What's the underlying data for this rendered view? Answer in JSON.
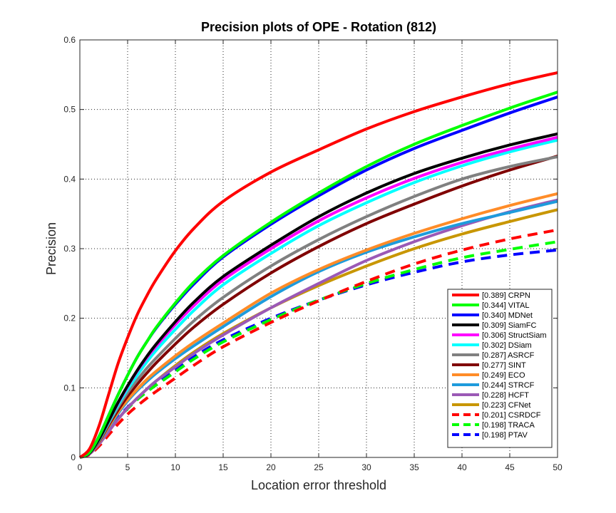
{
  "chart_data": {
    "type": "line",
    "title": "Precision plots of OPE - Rotation (812)",
    "xlabel": "Location error threshold",
    "ylabel": "Precision",
    "xlim": [
      0,
      50
    ],
    "ylim": [
      0,
      0.6
    ],
    "xticks": [
      0,
      5,
      10,
      15,
      20,
      25,
      30,
      35,
      40,
      45,
      50
    ],
    "yticks": [
      0,
      0.1,
      0.2,
      0.3,
      0.4,
      0.5,
      0.6
    ],
    "xtick_labels": [
      "0",
      "5",
      "10",
      "15",
      "20",
      "25",
      "30",
      "35",
      "40",
      "45",
      "50"
    ],
    "ytick_labels": [
      "0",
      "0.1",
      "0.2",
      "0.3",
      "0.4",
      "0.5",
      "0.6"
    ],
    "grid": true,
    "legend_position": "lower-right",
    "x": [
      0,
      1,
      2,
      3,
      4,
      5,
      6,
      7,
      8,
      10,
      12,
      15,
      20,
      25,
      30,
      35,
      40,
      45,
      50
    ],
    "series": [
      {
        "name": "CRPN",
        "legend_label": "[0.389] CRPN",
        "color": "#ff0000",
        "dash": "solid",
        "values": [
          0,
          0.012,
          0.045,
          0.09,
          0.135,
          0.172,
          0.205,
          0.232,
          0.256,
          0.297,
          0.33,
          0.368,
          0.41,
          0.442,
          0.472,
          0.497,
          0.518,
          0.537,
          0.553
        ]
      },
      {
        "name": "VITAL",
        "legend_label": "[0.344] VITAL",
        "color": "#00ff00",
        "dash": "solid",
        "values": [
          0,
          0.007,
          0.03,
          0.06,
          0.09,
          0.118,
          0.144,
          0.166,
          0.187,
          0.222,
          0.253,
          0.29,
          0.338,
          0.38,
          0.418,
          0.45,
          0.477,
          0.502,
          0.525
        ]
      },
      {
        "name": "MDNet",
        "legend_label": "[0.340] MDNet",
        "color": "#0000ff",
        "dash": "solid",
        "values": [
          0,
          0.007,
          0.03,
          0.06,
          0.09,
          0.118,
          0.144,
          0.166,
          0.186,
          0.22,
          0.25,
          0.288,
          0.335,
          0.376,
          0.413,
          0.444,
          0.47,
          0.495,
          0.518
        ]
      },
      {
        "name": "SiamFC",
        "legend_label": "[0.309] SiamFC",
        "color": "#000000",
        "dash": "solid",
        "values": [
          0,
          0.006,
          0.026,
          0.052,
          0.079,
          0.103,
          0.125,
          0.145,
          0.163,
          0.195,
          0.224,
          0.26,
          0.305,
          0.346,
          0.38,
          0.408,
          0.43,
          0.449,
          0.465
        ]
      },
      {
        "name": "StructSiam",
        "legend_label": "[0.306] StructSiam",
        "color": "#ff00ff",
        "dash": "solid",
        "values": [
          0,
          0.006,
          0.026,
          0.052,
          0.078,
          0.102,
          0.124,
          0.143,
          0.16,
          0.191,
          0.219,
          0.255,
          0.3,
          0.34,
          0.373,
          0.401,
          0.424,
          0.443,
          0.46
        ]
      },
      {
        "name": "DSiam",
        "legend_label": "[0.302] DSiam",
        "color": "#00ffff",
        "dash": "solid",
        "values": [
          0,
          0.006,
          0.025,
          0.05,
          0.075,
          0.098,
          0.118,
          0.137,
          0.154,
          0.184,
          0.212,
          0.248,
          0.293,
          0.333,
          0.366,
          0.395,
          0.419,
          0.439,
          0.456
        ]
      },
      {
        "name": "ASRCF",
        "legend_label": "[0.287] ASRCF",
        "color": "#808080",
        "dash": "solid",
        "values": [
          0,
          0.006,
          0.024,
          0.048,
          0.072,
          0.093,
          0.111,
          0.128,
          0.143,
          0.171,
          0.197,
          0.23,
          0.275,
          0.313,
          0.346,
          0.375,
          0.4,
          0.418,
          0.432
        ]
      },
      {
        "name": "SINT",
        "legend_label": "[0.277] SINT",
        "color": "#800000",
        "dash": "solid",
        "values": [
          0,
          0.006,
          0.023,
          0.046,
          0.068,
          0.088,
          0.105,
          0.121,
          0.136,
          0.163,
          0.188,
          0.22,
          0.265,
          0.303,
          0.336,
          0.364,
          0.39,
          0.413,
          0.433
        ]
      },
      {
        "name": "ECO",
        "legend_label": "[0.249] ECO",
        "color": "#ff8c28",
        "dash": "solid",
        "values": [
          0,
          0.006,
          0.022,
          0.044,
          0.065,
          0.083,
          0.098,
          0.112,
          0.124,
          0.146,
          0.166,
          0.193,
          0.236,
          0.27,
          0.298,
          0.322,
          0.343,
          0.362,
          0.379
        ]
      },
      {
        "name": "STRCF",
        "legend_label": "[0.244] STRCF",
        "color": "#1e9bdc",
        "dash": "solid",
        "values": [
          0,
          0.006,
          0.022,
          0.043,
          0.063,
          0.081,
          0.096,
          0.109,
          0.121,
          0.142,
          0.161,
          0.188,
          0.231,
          0.267,
          0.295,
          0.317,
          0.336,
          0.352,
          0.368
        ]
      },
      {
        "name": "HCFT",
        "legend_label": "[0.228] HCFT",
        "color": "#9b59b6",
        "dash": "solid",
        "values": [
          0,
          0.005,
          0.019,
          0.037,
          0.055,
          0.071,
          0.085,
          0.098,
          0.11,
          0.13,
          0.15,
          0.176,
          0.215,
          0.25,
          0.283,
          0.31,
          0.333,
          0.353,
          0.37
        ]
      },
      {
        "name": "CFNet",
        "legend_label": "[0.223] CFNet",
        "color": "#c89600",
        "dash": "solid",
        "values": [
          0,
          0.005,
          0.019,
          0.037,
          0.055,
          0.071,
          0.085,
          0.098,
          0.11,
          0.132,
          0.152,
          0.178,
          0.215,
          0.247,
          0.275,
          0.3,
          0.321,
          0.339,
          0.356
        ]
      },
      {
        "name": "CSRDCF",
        "legend_label": "[0.201] CSRDCF",
        "color": "#ff0000",
        "dash": "dashed",
        "values": [
          0,
          0.004,
          0.016,
          0.032,
          0.048,
          0.062,
          0.074,
          0.085,
          0.095,
          0.114,
          0.133,
          0.159,
          0.194,
          0.225,
          0.253,
          0.278,
          0.298,
          0.314,
          0.327
        ]
      },
      {
        "name": "TRACA",
        "legend_label": "[0.198] TRACA",
        "color": "#00ff00",
        "dash": "dashed",
        "values": [
          0,
          0.005,
          0.019,
          0.038,
          0.055,
          0.07,
          0.083,
          0.094,
          0.104,
          0.123,
          0.142,
          0.166,
          0.198,
          0.226,
          0.25,
          0.27,
          0.287,
          0.299,
          0.31
        ]
      },
      {
        "name": "PTAV",
        "legend_label": "[0.198] PTAV",
        "color": "#0000ff",
        "dash": "dashed",
        "values": [
          0,
          0.005,
          0.02,
          0.039,
          0.057,
          0.072,
          0.085,
          0.097,
          0.107,
          0.126,
          0.145,
          0.169,
          0.2,
          0.226,
          0.248,
          0.266,
          0.281,
          0.291,
          0.298
        ]
      }
    ]
  }
}
